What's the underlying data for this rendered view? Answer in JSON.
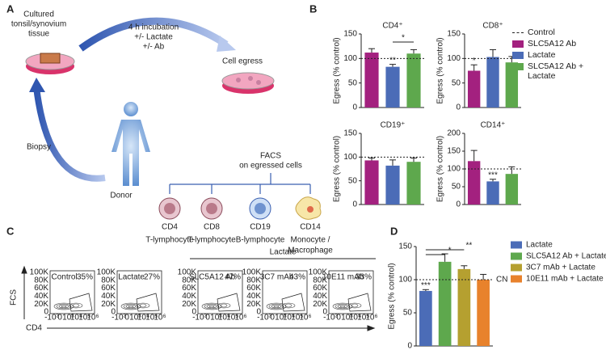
{
  "panel_labels": [
    "A",
    "B",
    "C",
    "D"
  ],
  "diagram": {
    "tissue_label": [
      "Cultured",
      "tonsil/synovium",
      "tissue"
    ],
    "incubation_label": [
      "4 h incubation",
      "+/- Lactate",
      "+/- Ab"
    ],
    "egress_label": "Cell egress",
    "biopsy_label": "Biopsy",
    "donor_label": "Donor",
    "facs_label": [
      "FACS",
      "on egressed cells"
    ],
    "cells": [
      {
        "marker": "CD4",
        "type": [
          "T-lymphocyte"
        ]
      },
      {
        "marker": "CD8",
        "type": [
          "T-lymphocyte"
        ]
      },
      {
        "marker": "CD19",
        "type": [
          "B-lymphocyte"
        ]
      },
      {
        "marker": "CD14",
        "type": [
          "Monocyte /",
          "Macrophage"
        ]
      }
    ]
  },
  "b_legend": [
    {
      "name": "Control"
    },
    {
      "name": "SLC5A12 Ab",
      "color": "#a3217f"
    },
    {
      "name": "Lactate",
      "color": "#4b6cb7"
    },
    {
      "name": "SLC5A12 Ab + Lactate",
      "color": "#5ea84d"
    }
  ],
  "flow": {
    "y_axis_label": "FCS",
    "x_axis_label": "CD4",
    "group_label": "Lactate",
    "y_ticks": [
      "100K",
      "80K",
      "60K",
      "40K",
      "20K",
      "0"
    ],
    "x_ticks": [
      "-10³",
      "0",
      "10³",
      "10⁴",
      "10⁵",
      "10⁶"
    ],
    "plots": [
      {
        "label": "Control",
        "percent": "35%"
      },
      {
        "label": "Lactate",
        "percent": "27%"
      },
      {
        "label": "SLC5A12 Ab",
        "percent": "47%"
      },
      {
        "label": "3C7 mAb",
        "percent": "43%"
      },
      {
        "label": "10E11 mAb",
        "percent": "33%"
      }
    ]
  },
  "chart_data": [
    {
      "type": "bar",
      "title": "CD4⁺",
      "y_label": "Egress (% control)",
      "values": [
        112,
        83,
        110
      ],
      "errors": [
        8,
        5,
        8
      ],
      "ylim": [
        0,
        150
      ],
      "yticks": [
        0,
        50,
        100,
        150
      ],
      "reference_line": 100,
      "significance": [
        null,
        "**",
        null
      ],
      "brackets": [
        {
          "label": "*"
        }
      ]
    },
    {
      "type": "bar",
      "title": "CD8⁺",
      "y_label": "Egress (% control)",
      "values": [
        75,
        103,
        92
      ],
      "errors": [
        12,
        15,
        12
      ],
      "ylim": [
        0,
        150
      ],
      "yticks": [
        0,
        50,
        100,
        150
      ],
      "reference_line": 100,
      "significance": [
        "*",
        null,
        null
      ]
    },
    {
      "type": "bar",
      "title": "CD19⁺",
      "y_label": "Egress (% control)",
      "values": [
        93,
        82,
        90
      ],
      "errors": [
        5,
        12,
        8
      ],
      "ylim": [
        0,
        150
      ],
      "yticks": [
        0,
        50,
        100,
        150
      ],
      "reference_line": 100,
      "significance": [
        null,
        null,
        null
      ]
    },
    {
      "type": "bar",
      "title": "CD14⁺",
      "y_label": "Egress (% control)",
      "values": [
        122,
        65,
        86
      ],
      "errors": [
        30,
        6,
        20
      ],
      "ylim": [
        0,
        200
      ],
      "yticks": [
        0,
        50,
        100,
        150,
        200
      ],
      "reference_line": 100,
      "significance": [
        null,
        "***",
        null
      ]
    },
    {
      "type": "bar",
      "y_label": "Egress (% control)",
      "categories": [
        "Lactate",
        "SLC5A12 Ab + Lactate",
        "3C7 mAb + Lactate",
        "10E11 mAb + Lactate"
      ],
      "colors": [
        "#4b6cb7",
        "#5ea84d",
        "#b5a030",
        "#e8822c"
      ],
      "values": [
        83,
        127,
        116,
        100
      ],
      "errors": [
        2,
        12,
        5,
        8
      ],
      "ylim": [
        0,
        150
      ],
      "yticks": [
        0,
        50,
        100,
        150
      ],
      "reference_line": 100,
      "reference_label": "CN",
      "significance": [
        "***",
        null,
        null,
        null
      ],
      "brackets": [
        {
          "label": "*"
        },
        {
          "label": "**"
        }
      ]
    }
  ]
}
